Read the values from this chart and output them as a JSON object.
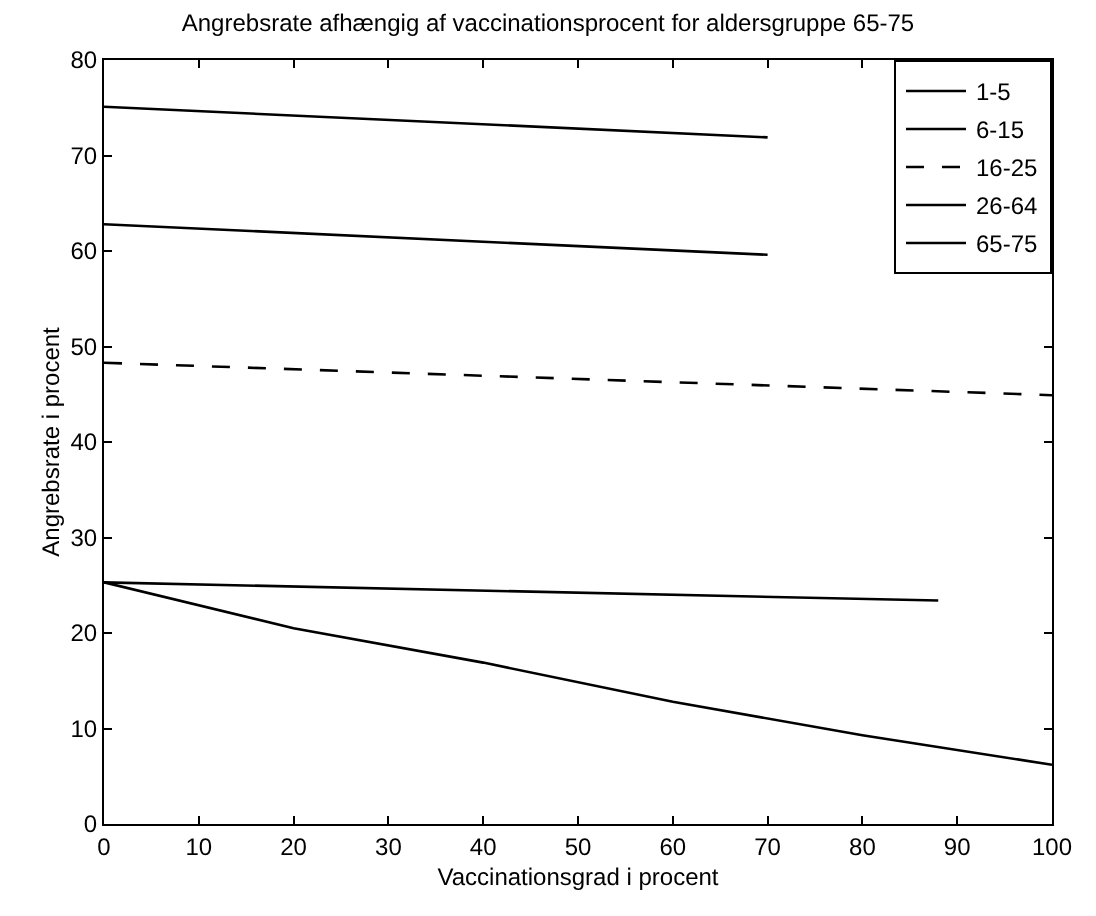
{
  "chart_data": {
    "type": "line",
    "title": "Angrebsrate afhængig af vaccinationsprocent for aldersgruppe 65-75",
    "xlabel": "Vaccinationsgrad i procent",
    "ylabel": "Angrebsrate i procent",
    "xlim": [
      0,
      100
    ],
    "ylim": [
      0,
      80
    ],
    "xticks": [
      0,
      10,
      20,
      30,
      40,
      50,
      60,
      70,
      80,
      90,
      100
    ],
    "yticks": [
      0,
      10,
      20,
      30,
      40,
      50,
      60,
      70,
      80
    ],
    "legend": "top right",
    "marker": "none",
    "series": [
      {
        "name": "1-5",
        "color": "#000000",
        "x": [
          0,
          70
        ],
        "values": [
          75.1,
          71.9
        ],
        "line_style": "solid"
      },
      {
        "name": "6-15",
        "color": "#000000",
        "x": [
          0,
          70
        ],
        "values": [
          62.8,
          59.6
        ],
        "line_style": "solid"
      },
      {
        "name": "16-25",
        "color": "#000000",
        "x": [
          0,
          100
        ],
        "values": [
          48.3,
          44.9
        ],
        "line_style": "dashed"
      },
      {
        "name": "26-64",
        "color": "#000000",
        "x": [
          0,
          88
        ],
        "values": [
          25.3,
          23.4
        ],
        "line_style": "solid"
      },
      {
        "name": "65-75",
        "color": "#000000",
        "x": [
          0,
          20,
          40,
          60,
          80,
          100
        ],
        "values": [
          25.3,
          20.5,
          16.9,
          12.8,
          9.3,
          6.2
        ],
        "line_style": "solid"
      }
    ]
  }
}
